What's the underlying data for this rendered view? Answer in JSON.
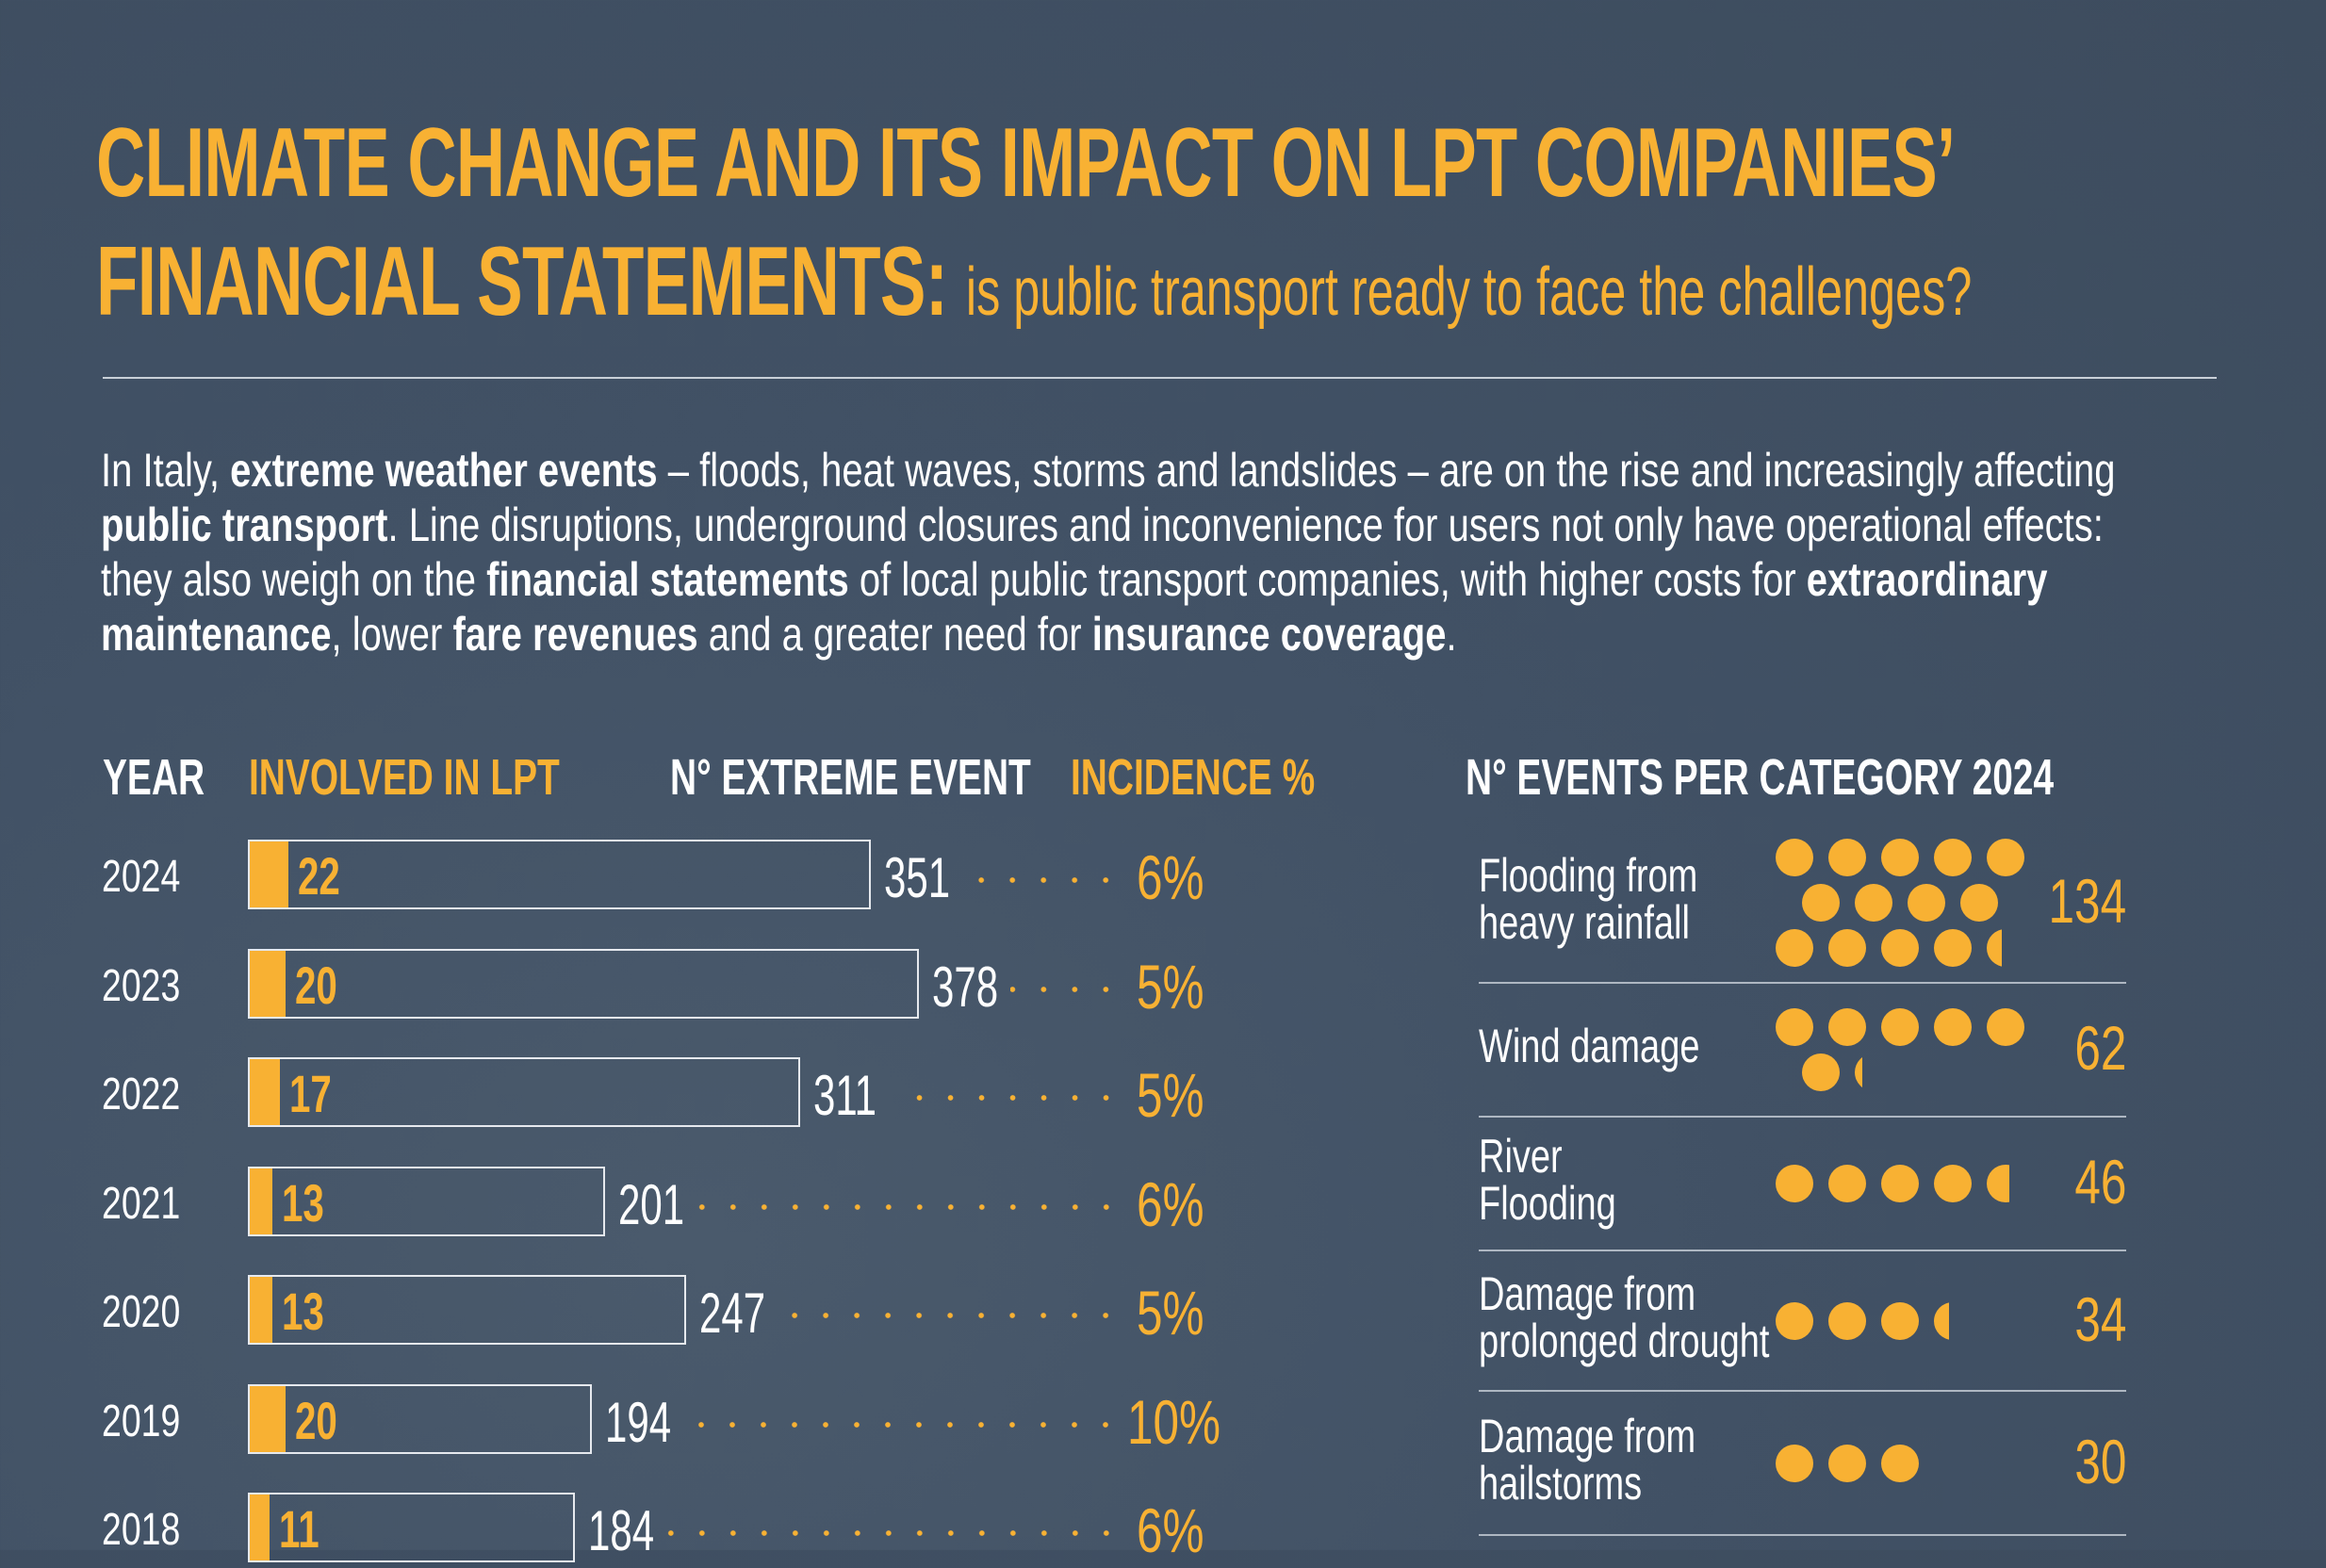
{
  "title": {
    "line1": "CLIMATE CHANGE AND ITS IMPACT ON LPT COMPANIES’",
    "line2": "FINANCIAL STATEMENTS:",
    "subtitle": "is public transport ready to face the challenges?"
  },
  "intro": [
    {
      "t": "In Italy, ",
      "b": false
    },
    {
      "t": "extreme weather events",
      "b": true
    },
    {
      "t": " – floods, heat waves, storms and landslides – are on the rise and increasingly affecting ",
      "b": false
    },
    {
      "t": "public transport",
      "b": true
    },
    {
      "t": ". Line disruptions, underground closures and inconvenience for users not only have operational effects: they also weigh on the ",
      "b": false
    },
    {
      "t": "financial statements",
      "b": true
    },
    {
      "t": " of local public transport companies, with higher costs for ",
      "b": false
    },
    {
      "t": "extraordinary maintenance",
      "b": true
    },
    {
      "t": ", lower ",
      "b": false
    },
    {
      "t": "fare revenues",
      "b": true
    },
    {
      "t": " and a greater need for ",
      "b": false
    },
    {
      "t": "insurance coverage",
      "b": true
    },
    {
      "t": ".",
      "b": false
    }
  ],
  "colors": {
    "accent": "#F8B133",
    "background": "#435366",
    "text": "#FFFFFF"
  },
  "chart_data": [
    {
      "type": "bar",
      "headers": {
        "year": "YEAR",
        "involved": "INVOLVED IN LPT",
        "events": "N° EXTREME EVENT",
        "incidence": "INCIDENCE %"
      },
      "categories": [
        "2024",
        "2023",
        "2022",
        "2021",
        "2020",
        "2019",
        "2018"
      ],
      "series": [
        {
          "name": "INVOLVED IN LPT",
          "values": [
            22,
            20,
            17,
            13,
            13,
            20,
            11
          ]
        },
        {
          "name": "N° EXTREME EVENT",
          "values": [
            351,
            378,
            311,
            201,
            247,
            194,
            184
          ]
        },
        {
          "name": "INCIDENCE %",
          "values": [
            "6%",
            "5%",
            "5%",
            "6%",
            "5%",
            "10%",
            "6%"
          ]
        }
      ]
    },
    {
      "type": "pictogram",
      "title": "N° EVENTS PER CATEGORY 2024",
      "units_per_dot": 10,
      "categories": [
        {
          "label": [
            "Flooding from",
            "heavy rainfall"
          ],
          "value": 134
        },
        {
          "label": [
            "Wind damage"
          ],
          "value": 62
        },
        {
          "label": [
            "River",
            "Flooding"
          ],
          "value": 46
        },
        {
          "label": [
            "Damage from",
            "prolonged drought"
          ],
          "value": 34
        },
        {
          "label": [
            "Damage from",
            "hailstorms"
          ],
          "value": 30
        }
      ]
    }
  ]
}
